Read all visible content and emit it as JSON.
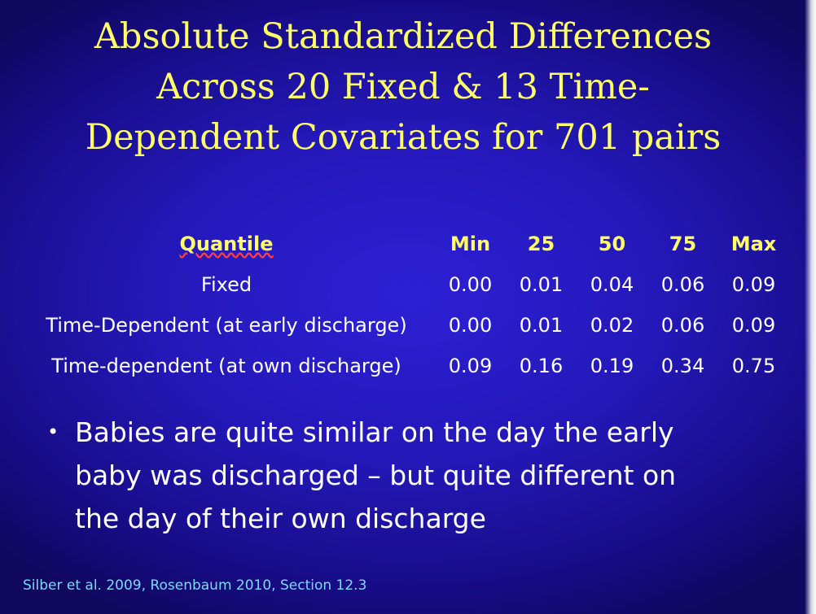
{
  "slide": {
    "title_lines": [
      "Absolute Standardized Differences",
      "Across 20 Fixed & 13 Time-",
      "Dependent Covariates for 701 pairs"
    ],
    "table": {
      "headers": [
        "Quantile",
        "Min",
        "25",
        "50",
        "75",
        "Max"
      ],
      "rows": [
        {
          "label": "Fixed",
          "values": [
            "0.00",
            "0.01",
            "0.04",
            "0.06",
            "0.09"
          ]
        },
        {
          "label": "Time-Dependent (at early discharge)",
          "values": [
            "0.00",
            "0.01",
            "0.02",
            "0.06",
            "0.09"
          ]
        },
        {
          "label": "Time-dependent (at own discharge)",
          "values": [
            "0.09",
            "0.16",
            "0.19",
            "0.34",
            "0.75"
          ]
        }
      ]
    },
    "bullet": {
      "marker": "•",
      "lines": [
        "Babies are quite similar on the day the early",
        "baby was discharged – but quite different on",
        "the day of their own discharge"
      ]
    },
    "citation": "Silber et al. 2009, Rosenbaum 2010, Section 12.3"
  },
  "colors": {
    "title": "#ffff66",
    "table_header": "#ffff66",
    "body_text": "#ffffff",
    "citation": "#7fd8ff",
    "background": "#2418b8"
  }
}
